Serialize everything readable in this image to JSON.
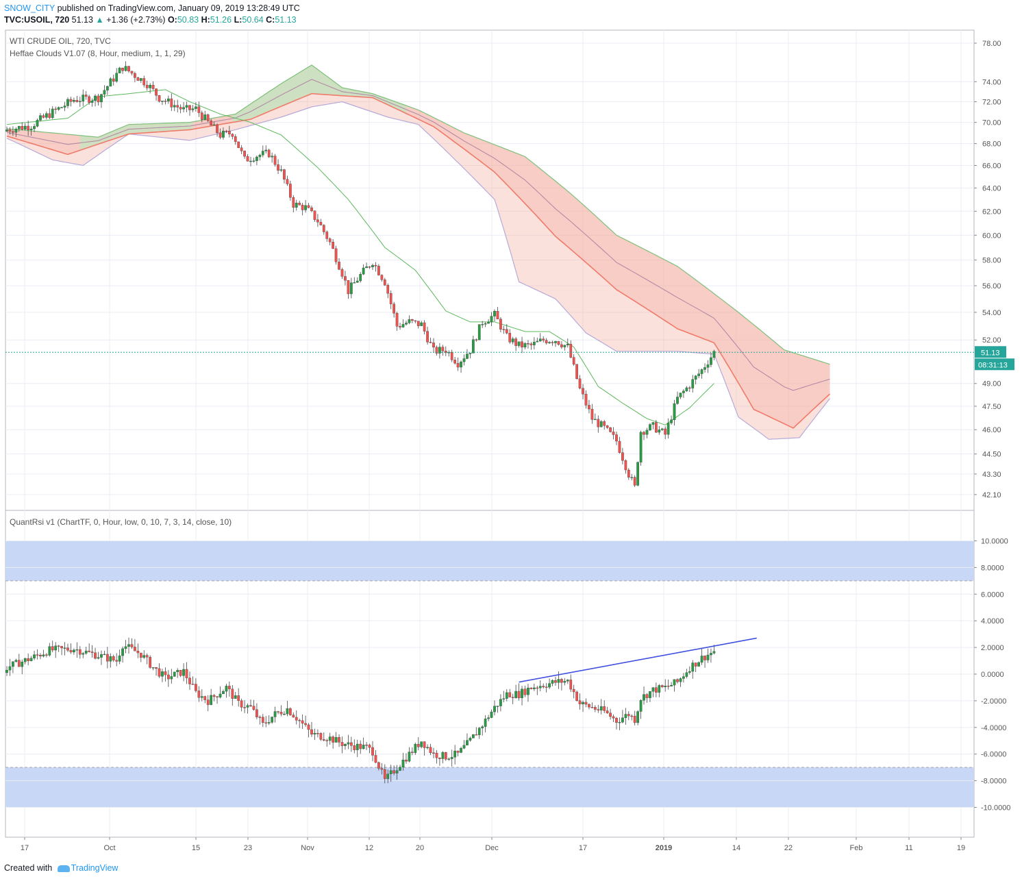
{
  "header": {
    "username": "SNOW_CITY",
    "published_text": "published on TradingView.com, January 09, 2019 13:28:49 UTC",
    "symbol": "TVC:USOIL, 720",
    "last": "51.13",
    "change_arrow": "▲",
    "change": "+1.36 (+2.73%)",
    "o_label": "O:",
    "o_value": "50.83",
    "h_label": "H:",
    "h_value": "51.26",
    "l_label": "L:",
    "l_value": "50.64",
    "c_label": "C:",
    "c_value": "51.13"
  },
  "labels": {
    "main_title": "WTI CRUDE OIL, 720, TVC",
    "indicator1": "Heffae Clouds V1.07 (8, Hour, medium, 1, 1, 29)",
    "indicator2": "QuantRsi v1 (ChartTF, 0, Hour, low, 0, 10, 7, 3, 14, close, 10)"
  },
  "footer": {
    "created_with": "Created with",
    "brand": "TradingView"
  },
  "colors": {
    "up": "#26a69a",
    "candle_up": "#2a9a45",
    "candle_down": "#ef5350",
    "grid": "#e9edf4",
    "price_line": "#26a69a",
    "trendline": "#3f4fe0",
    "rsi_band": "#c9d7f6",
    "cloud_red": "#f4a89a",
    "cloud_green": "#c5e3c0"
  },
  "chart_data": [
    {
      "type": "candlestick",
      "title": "WTI CRUDE OIL, 720, TVC",
      "yscale": "log",
      "ylim": [
        41.2,
        79.4
      ],
      "price_ticks": [
        "78.00",
        "74.00",
        "72.00",
        "70.00",
        "68.00",
        "66.00",
        "64.00",
        "62.00",
        "60.00",
        "58.00",
        "56.00",
        "54.00",
        "52.00",
        "49.00",
        "47.50",
        "46.00",
        "44.50",
        "43.30",
        "42.10"
      ],
      "x_ticks": [
        "17",
        "Oct",
        "15",
        "23",
        "Nov",
        "12",
        "20",
        "Dec",
        "17",
        "2019",
        "14",
        "22",
        "Feb",
        "11",
        "19"
      ],
      "current_price": "51.13",
      "countdown": "08:31:13",
      "close_anchors": [
        [
          0,
          69.3
        ],
        [
          8,
          69.7
        ],
        [
          14,
          70.8
        ],
        [
          22,
          72.2
        ],
        [
          30,
          72.4
        ],
        [
          38,
          75.5
        ],
        [
          46,
          73.8
        ],
        [
          50,
          72.4
        ],
        [
          58,
          71.2
        ],
        [
          62,
          71.3
        ],
        [
          66,
          70.0
        ],
        [
          70,
          68.8
        ],
        [
          74,
          69.0
        ],
        [
          78,
          66.5
        ],
        [
          82,
          66.9
        ],
        [
          86,
          67.1
        ],
        [
          90,
          65.4
        ],
        [
          94,
          62.6
        ],
        [
          98,
          62.3
        ],
        [
          102,
          61.2
        ],
        [
          106,
          59.4
        ],
        [
          110,
          57.0
        ],
        [
          112,
          55.6
        ],
        [
          116,
          56.8
        ],
        [
          120,
          57.9
        ],
        [
          124,
          56.3
        ],
        [
          128,
          53.0
        ],
        [
          132,
          53.3
        ],
        [
          136,
          53.1
        ],
        [
          140,
          51.2
        ],
        [
          144,
          51.3
        ],
        [
          148,
          50.4
        ],
        [
          152,
          51.3
        ],
        [
          156,
          53.3
        ],
        [
          160,
          53.8
        ],
        [
          164,
          52.2
        ],
        [
          168,
          51.6
        ],
        [
          172,
          51.6
        ],
        [
          176,
          52.0
        ],
        [
          180,
          52.0
        ],
        [
          184,
          51.5
        ],
        [
          188,
          48.6
        ],
        [
          192,
          46.7
        ],
        [
          196,
          46.1
        ],
        [
          200,
          45.3
        ],
        [
          204,
          43.3
        ],
        [
          206,
          42.5
        ],
        [
          208,
          45.9
        ],
        [
          212,
          46.2
        ],
        [
          216,
          45.7
        ],
        [
          220,
          48.0
        ],
        [
          224,
          48.9
        ],
        [
          228,
          49.9
        ],
        [
          232,
          51.13
        ]
      ],
      "heffae_cloud": {
        "upper_anchors": [
          [
            0,
            69.4
          ],
          [
            30,
            68.6
          ],
          [
            40,
            69.8
          ],
          [
            60,
            70.0
          ],
          [
            75,
            70.8
          ],
          [
            90,
            73.8
          ],
          [
            100,
            75.7
          ],
          [
            110,
            73.4
          ],
          [
            120,
            72.8
          ],
          [
            135,
            71.2
          ],
          [
            150,
            69.0
          ],
          [
            170,
            66.8
          ],
          [
            185,
            63.5
          ],
          [
            200,
            60.0
          ],
          [
            220,
            57.5
          ],
          [
            240,
            54.0
          ],
          [
            255,
            51.3
          ],
          [
            270,
            50.3
          ]
        ],
        "lower_anchors": [
          [
            0,
            68.5
          ],
          [
            15,
            66.5
          ],
          [
            25,
            66.0
          ],
          [
            40,
            68.9
          ],
          [
            60,
            68.3
          ],
          [
            75,
            69.3
          ],
          [
            90,
            70.5
          ],
          [
            100,
            71.5
          ],
          [
            110,
            72.0
          ],
          [
            125,
            70.5
          ],
          [
            135,
            69.8
          ],
          [
            160,
            63.0
          ],
          [
            168,
            56.3
          ],
          [
            180,
            55.0
          ],
          [
            190,
            52.5
          ],
          [
            200,
            51.2
          ],
          [
            220,
            51.2
          ],
          [
            232,
            51.0
          ],
          [
            240,
            46.8
          ],
          [
            250,
            45.4
          ],
          [
            260,
            45.5
          ],
          [
            270,
            48.0
          ]
        ],
        "mid_anchors": [
          [
            0,
            68.7
          ],
          [
            20,
            67.0
          ],
          [
            40,
            68.9
          ],
          [
            60,
            69.3
          ],
          [
            80,
            70.3
          ],
          [
            100,
            72.8
          ],
          [
            120,
            72.4
          ],
          [
            140,
            69.6
          ],
          [
            160,
            65.4
          ],
          [
            180,
            59.9
          ],
          [
            200,
            55.7
          ],
          [
            220,
            52.8
          ],
          [
            232,
            51.8
          ],
          [
            245,
            47.3
          ],
          [
            258,
            46.1
          ],
          [
            270,
            48.3
          ]
        ]
      },
      "sma_anchors": [
        [
          0,
          69.8
        ],
        [
          20,
          70.4
        ],
        [
          30,
          72.5
        ],
        [
          40,
          72.8
        ],
        [
          52,
          73.2
        ],
        [
          60,
          72.0
        ],
        [
          70,
          70.8
        ],
        [
          80,
          70.0
        ],
        [
          90,
          68.8
        ],
        [
          102,
          65.8
        ],
        [
          112,
          63.0
        ],
        [
          124,
          59.0
        ],
        [
          134,
          57.2
        ],
        [
          144,
          54.1
        ],
        [
          152,
          53.3
        ],
        [
          160,
          53.3
        ],
        [
          170,
          52.6
        ],
        [
          178,
          52.6
        ],
        [
          186,
          51.5
        ],
        [
          194,
          48.8
        ],
        [
          202,
          47.7
        ],
        [
          210,
          46.7
        ],
        [
          216,
          46.3
        ],
        [
          224,
          47.4
        ],
        [
          232,
          49.0
        ]
      ]
    },
    {
      "type": "candlestick",
      "title": "QuantRsi v1 (ChartTF, 0, Hour, low, 0, 10, 7, 3, 14, close, 10)",
      "ylim": [
        -11.0,
        11.0
      ],
      "y_ticks": [
        "10.0000",
        "8.0000",
        "6.0000",
        "4.0000",
        "2.0000",
        "0.0000",
        "-2.0000",
        "-4.0000",
        "-6.0000",
        "-8.0000",
        "-10.0000"
      ],
      "upper_band": [
        7.0,
        10.0
      ],
      "lower_band": [
        -10.0,
        -7.0
      ],
      "value_anchors": [
        [
          0,
          0.5
        ],
        [
          8,
          1.2
        ],
        [
          14,
          1.8
        ],
        [
          22,
          1.9
        ],
        [
          30,
          1.4
        ],
        [
          36,
          1.0
        ],
        [
          38,
          2.2
        ],
        [
          44,
          1.5
        ],
        [
          48,
          0.5
        ],
        [
          52,
          -0.3
        ],
        [
          58,
          0.2
        ],
        [
          62,
          -1.4
        ],
        [
          66,
          -2.0
        ],
        [
          72,
          -1.0
        ],
        [
          76,
          -2.2
        ],
        [
          80,
          -2.5
        ],
        [
          84,
          -3.8
        ],
        [
          88,
          -3.0
        ],
        [
          92,
          -2.6
        ],
        [
          96,
          -3.5
        ],
        [
          100,
          -4.5
        ],
        [
          106,
          -4.8
        ],
        [
          110,
          -5.2
        ],
        [
          114,
          -5.4
        ],
        [
          118,
          -5.5
        ],
        [
          120,
          -5.8
        ],
        [
          124,
          -8.0
        ],
        [
          128,
          -7.0
        ],
        [
          132,
          -6.0
        ],
        [
          136,
          -5.0
        ],
        [
          140,
          -6.0
        ],
        [
          144,
          -6.2
        ],
        [
          148,
          -6.0
        ],
        [
          152,
          -5.0
        ],
        [
          156,
          -3.8
        ],
        [
          160,
          -2.5
        ],
        [
          164,
          -1.5
        ],
        [
          168,
          -1.5
        ],
        [
          172,
          -1.0
        ],
        [
          176,
          -0.8
        ],
        [
          180,
          -0.6
        ],
        [
          184,
          -0.5
        ],
        [
          188,
          -2.2
        ],
        [
          192,
          -2.5
        ],
        [
          196,
          -2.8
        ],
        [
          200,
          -3.5
        ],
        [
          204,
          -3.0
        ],
        [
          206,
          -3.4
        ],
        [
          208,
          -1.8
        ],
        [
          212,
          -1.2
        ],
        [
          216,
          -1.0
        ],
        [
          220,
          -0.6
        ],
        [
          224,
          0.5
        ],
        [
          228,
          1.2
        ],
        [
          232,
          1.7
        ]
      ],
      "trendline": {
        "from": [
          168,
          -0.6
        ],
        "to": [
          246,
          2.7
        ]
      }
    }
  ]
}
